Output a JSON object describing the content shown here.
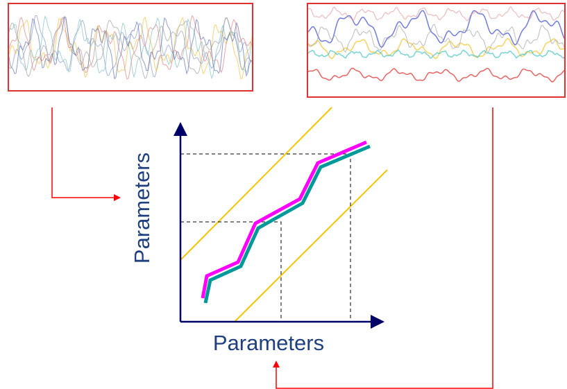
{
  "axes": {
    "y_label": "Parameters",
    "x_label": "Parameters"
  }
}
